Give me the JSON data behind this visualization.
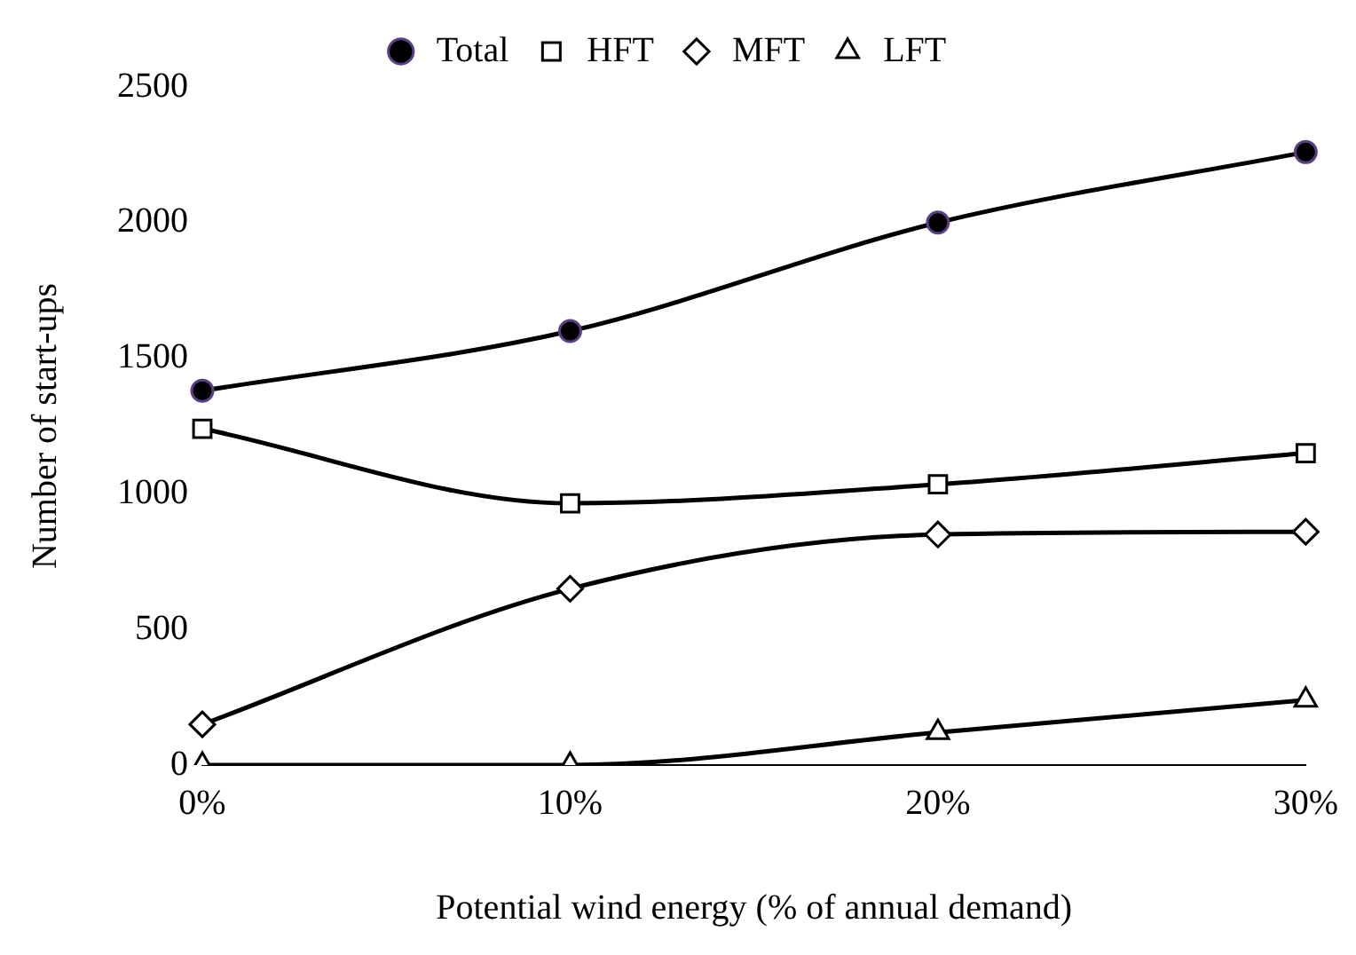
{
  "chart_data": {
    "type": "line",
    "xlabel": "Potential wind energy (% of annual demand)",
    "ylabel": "Number of start-ups",
    "categories": [
      "0%",
      "10%",
      "20%",
      "30%"
    ],
    "series": [
      {
        "name": "Total",
        "color": "#000000",
        "marker": "circle",
        "values": [
          1380,
          1600,
          2000,
          2260
        ]
      },
      {
        "name": "HFT",
        "color": "#000000",
        "marker": "square",
        "values": [
          1240,
          965,
          1035,
          1150
        ]
      },
      {
        "name": "MFT",
        "color": "#000000",
        "marker": "diamond",
        "values": [
          150,
          650,
          850,
          860
        ]
      },
      {
        "name": "LFT",
        "color": "#000000",
        "marker": "triangle",
        "values": [
          0,
          0,
          120,
          240
        ]
      }
    ],
    "ylim": [
      0,
      2500
    ],
    "yticks": [
      0,
      500,
      1000,
      1500,
      2000,
      2500
    ],
    "grid": false,
    "legend": "top",
    "line_style": "solid"
  }
}
